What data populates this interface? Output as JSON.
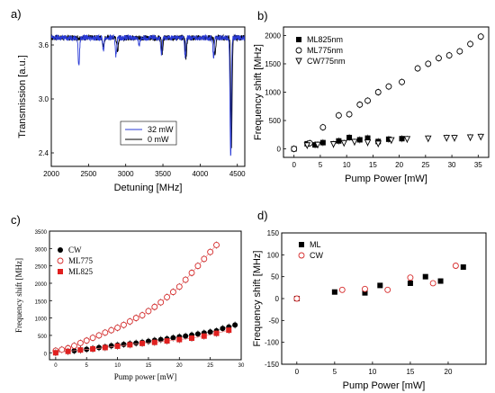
{
  "chart_data": [
    {
      "panel": "a)",
      "type": "line",
      "xlabel": "Detuning [MHz]",
      "ylabel": "Transmission [a.u.]",
      "xlim": [
        2000,
        4600
      ],
      "ylim": [
        2.25,
        3.8
      ],
      "xticks": [
        "2000",
        "2500",
        "3000",
        "3500",
        "4000",
        "4500"
      ],
      "yticks": [
        "2.4",
        "3.0",
        "3.6"
      ],
      "legend_position": "bottom-center",
      "series": [
        {
          "name": "32 mW",
          "color": "#2a3bd6",
          "baseline": 3.68,
          "dips": [
            {
              "x": 2370,
              "depth": 3.37
            },
            {
              "x": 2700,
              "depth": 3.54
            },
            {
              "x": 2870,
              "depth": 3.48
            },
            {
              "x": 3180,
              "depth": 3.58
            },
            {
              "x": 3480,
              "depth": 3.49
            },
            {
              "x": 3800,
              "depth": 3.47
            },
            {
              "x": 4180,
              "depth": 3.47
            },
            {
              "x": 4410,
              "depth": 2.38
            }
          ]
        },
        {
          "name": "0 mW",
          "color": "#000000",
          "baseline": 3.68,
          "dips": [
            {
              "x": 2700,
              "depth": 3.58
            },
            {
              "x": 2890,
              "depth": 3.52
            },
            {
              "x": 3490,
              "depth": 3.5
            },
            {
              "x": 3810,
              "depth": 3.46
            },
            {
              "x": 4200,
              "depth": 3.5
            },
            {
              "x": 4420,
              "depth": 2.45
            }
          ]
        }
      ]
    },
    {
      "panel": "b)",
      "type": "scatter",
      "xlabel": "Pump Power [mW]",
      "ylabel": "Frequency shift [MHz]",
      "xlim": [
        -2,
        37
      ],
      "ylim": [
        -150,
        2150
      ],
      "xticks": [
        "0",
        "5",
        "10",
        "15",
        "20",
        "25",
        "30",
        "35"
      ],
      "yticks": [
        "0",
        "500",
        "1000",
        "1500",
        "2000"
      ],
      "legend_position": "top-left",
      "series": [
        {
          "name": "ML825nm",
          "marker": "square-filled",
          "color": "#000000",
          "x": [
            0,
            2.5,
            4,
            5.5,
            8.5,
            10.5,
            12.5,
            14,
            16,
            18,
            20.5
          ],
          "y": [
            0,
            90,
            70,
            110,
            140,
            200,
            160,
            190,
            130,
            170,
            180
          ]
        },
        {
          "name": "ML775nm",
          "marker": "circle-open",
          "color": "#000000",
          "x": [
            0,
            3,
            5.5,
            8.5,
            10.5,
            12.5,
            14,
            16,
            18,
            20.5,
            23.5,
            25.5,
            27.5,
            29.5,
            31.5,
            33.5,
            35.5
          ],
          "y": [
            0,
            100,
            380,
            590,
            610,
            780,
            850,
            1000,
            1100,
            1180,
            1420,
            1500,
            1600,
            1650,
            1720,
            1850,
            1980
          ]
        },
        {
          "name": "CW775nm",
          "marker": "triangle-down-open",
          "color": "#000000",
          "x": [
            2.5,
            4.5,
            7.5,
            9.5,
            11.5,
            14,
            16,
            18.5,
            21.5,
            25.5,
            29,
            30.5,
            33.5,
            35.5
          ],
          "y": [
            60,
            70,
            80,
            100,
            120,
            110,
            90,
            150,
            170,
            180,
            190,
            190,
            200,
            210
          ]
        }
      ]
    },
    {
      "panel": "c)",
      "type": "scatter",
      "xlabel": "Pump  power [mW]",
      "ylabel": "Frequency shift [MHz]",
      "xlim": [
        -1,
        30
      ],
      "ylim": [
        -200,
        3500
      ],
      "xticks": [
        "0",
        "5",
        "10",
        "15",
        "20",
        "25",
        "30"
      ],
      "yticks": [
        "0",
        "500",
        "1000",
        "1500",
        "2000",
        "2500",
        "3000",
        "3500"
      ],
      "legend_position": "top-left",
      "series": [
        {
          "name": "CW",
          "marker": "circle-filled",
          "color": "#000000",
          "x": [
            0,
            2,
            3,
            4,
            5,
            6,
            7,
            8,
            9,
            10,
            11,
            12,
            13,
            14,
            15,
            16,
            17,
            18,
            19,
            20,
            21,
            22,
            23,
            24,
            25,
            26,
            27,
            28,
            29
          ],
          "y": [
            30,
            50,
            60,
            80,
            100,
            120,
            150,
            170,
            200,
            220,
            240,
            260,
            280,
            300,
            330,
            360,
            380,
            400,
            430,
            460,
            480,
            510,
            540,
            570,
            600,
            630,
            700,
            740,
            800
          ]
        },
        {
          "name": "ML775",
          "marker": "circle-open",
          "color": "#d62b2b",
          "x": [
            0,
            1,
            2,
            3,
            4,
            5,
            6,
            7,
            8,
            9,
            10,
            11,
            12,
            13,
            14,
            15,
            16,
            17,
            18,
            19,
            20,
            21,
            22,
            23,
            24,
            25,
            26
          ],
          "y": [
            60,
            90,
            130,
            200,
            280,
            350,
            430,
            500,
            580,
            650,
            720,
            800,
            900,
            1000,
            1080,
            1200,
            1320,
            1450,
            1600,
            1750,
            1900,
            2100,
            2300,
            2500,
            2700,
            2900,
            3100
          ]
        },
        {
          "name": "ML825",
          "marker": "square-filled",
          "color": "#e0201f",
          "x": [
            0,
            2,
            4,
            6,
            8,
            10,
            12,
            14,
            16,
            18,
            20,
            22,
            24,
            26,
            28
          ],
          "y": [
            0,
            40,
            80,
            110,
            150,
            190,
            230,
            270,
            300,
            340,
            380,
            420,
            480,
            560,
            650
          ]
        }
      ]
    },
    {
      "panel": "d)",
      "type": "scatter",
      "xlabel": "Pump Power [mW]",
      "ylabel": "Frequency shift [MHz]",
      "xlim": [
        -2,
        25
      ],
      "ylim": [
        -150,
        150
      ],
      "xticks": [
        "0",
        "5",
        "10",
        "15",
        "20"
      ],
      "yticks": [
        "-150",
        "-100",
        "-50",
        "0",
        "50",
        "100",
        "150"
      ],
      "legend_position": "top-left",
      "series": [
        {
          "name": "ML",
          "marker": "square-filled",
          "color": "#000000",
          "x": [
            0,
            5,
            9,
            11,
            15,
            17,
            19,
            22
          ],
          "y": [
            0,
            15,
            13,
            30,
            35,
            50,
            40,
            72
          ]
        },
        {
          "name": "CW",
          "marker": "circle-open",
          "color": "#d62b2b",
          "x": [
            0,
            6,
            9,
            12,
            15,
            18,
            21
          ],
          "y": [
            0,
            20,
            22,
            20,
            48,
            35,
            75
          ]
        }
      ]
    }
  ]
}
